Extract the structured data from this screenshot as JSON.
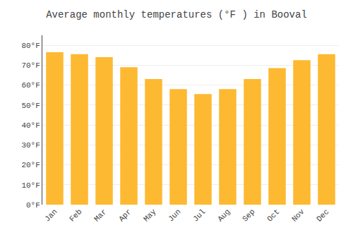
{
  "chart_data": {
    "type": "bar",
    "title": "Average monthly temperatures (°F ) in Booval",
    "categories": [
      "Jan",
      "Feb",
      "Mar",
      "Apr",
      "May",
      "Jun",
      "Jul",
      "Aug",
      "Sep",
      "Oct",
      "Nov",
      "Dec"
    ],
    "values": [
      76.5,
      75.5,
      74.0,
      69.0,
      63.0,
      58.0,
      55.5,
      58.0,
      63.0,
      68.5,
      72.5,
      75.5
    ],
    "color": "#FDB931",
    "ylim": [
      0,
      85
    ],
    "yticks": [
      {
        "value": 0,
        "label": "0°F"
      },
      {
        "value": 10,
        "label": "10°F"
      },
      {
        "value": 20,
        "label": "20°F"
      },
      {
        "value": 30,
        "label": "30°F"
      },
      {
        "value": 40,
        "label": "40°F"
      },
      {
        "value": 50,
        "label": "50°F"
      },
      {
        "value": 60,
        "label": "60°F"
      },
      {
        "value": 70,
        "label": "70°F"
      },
      {
        "value": 80,
        "label": "80°F"
      }
    ],
    "grid": true
  }
}
